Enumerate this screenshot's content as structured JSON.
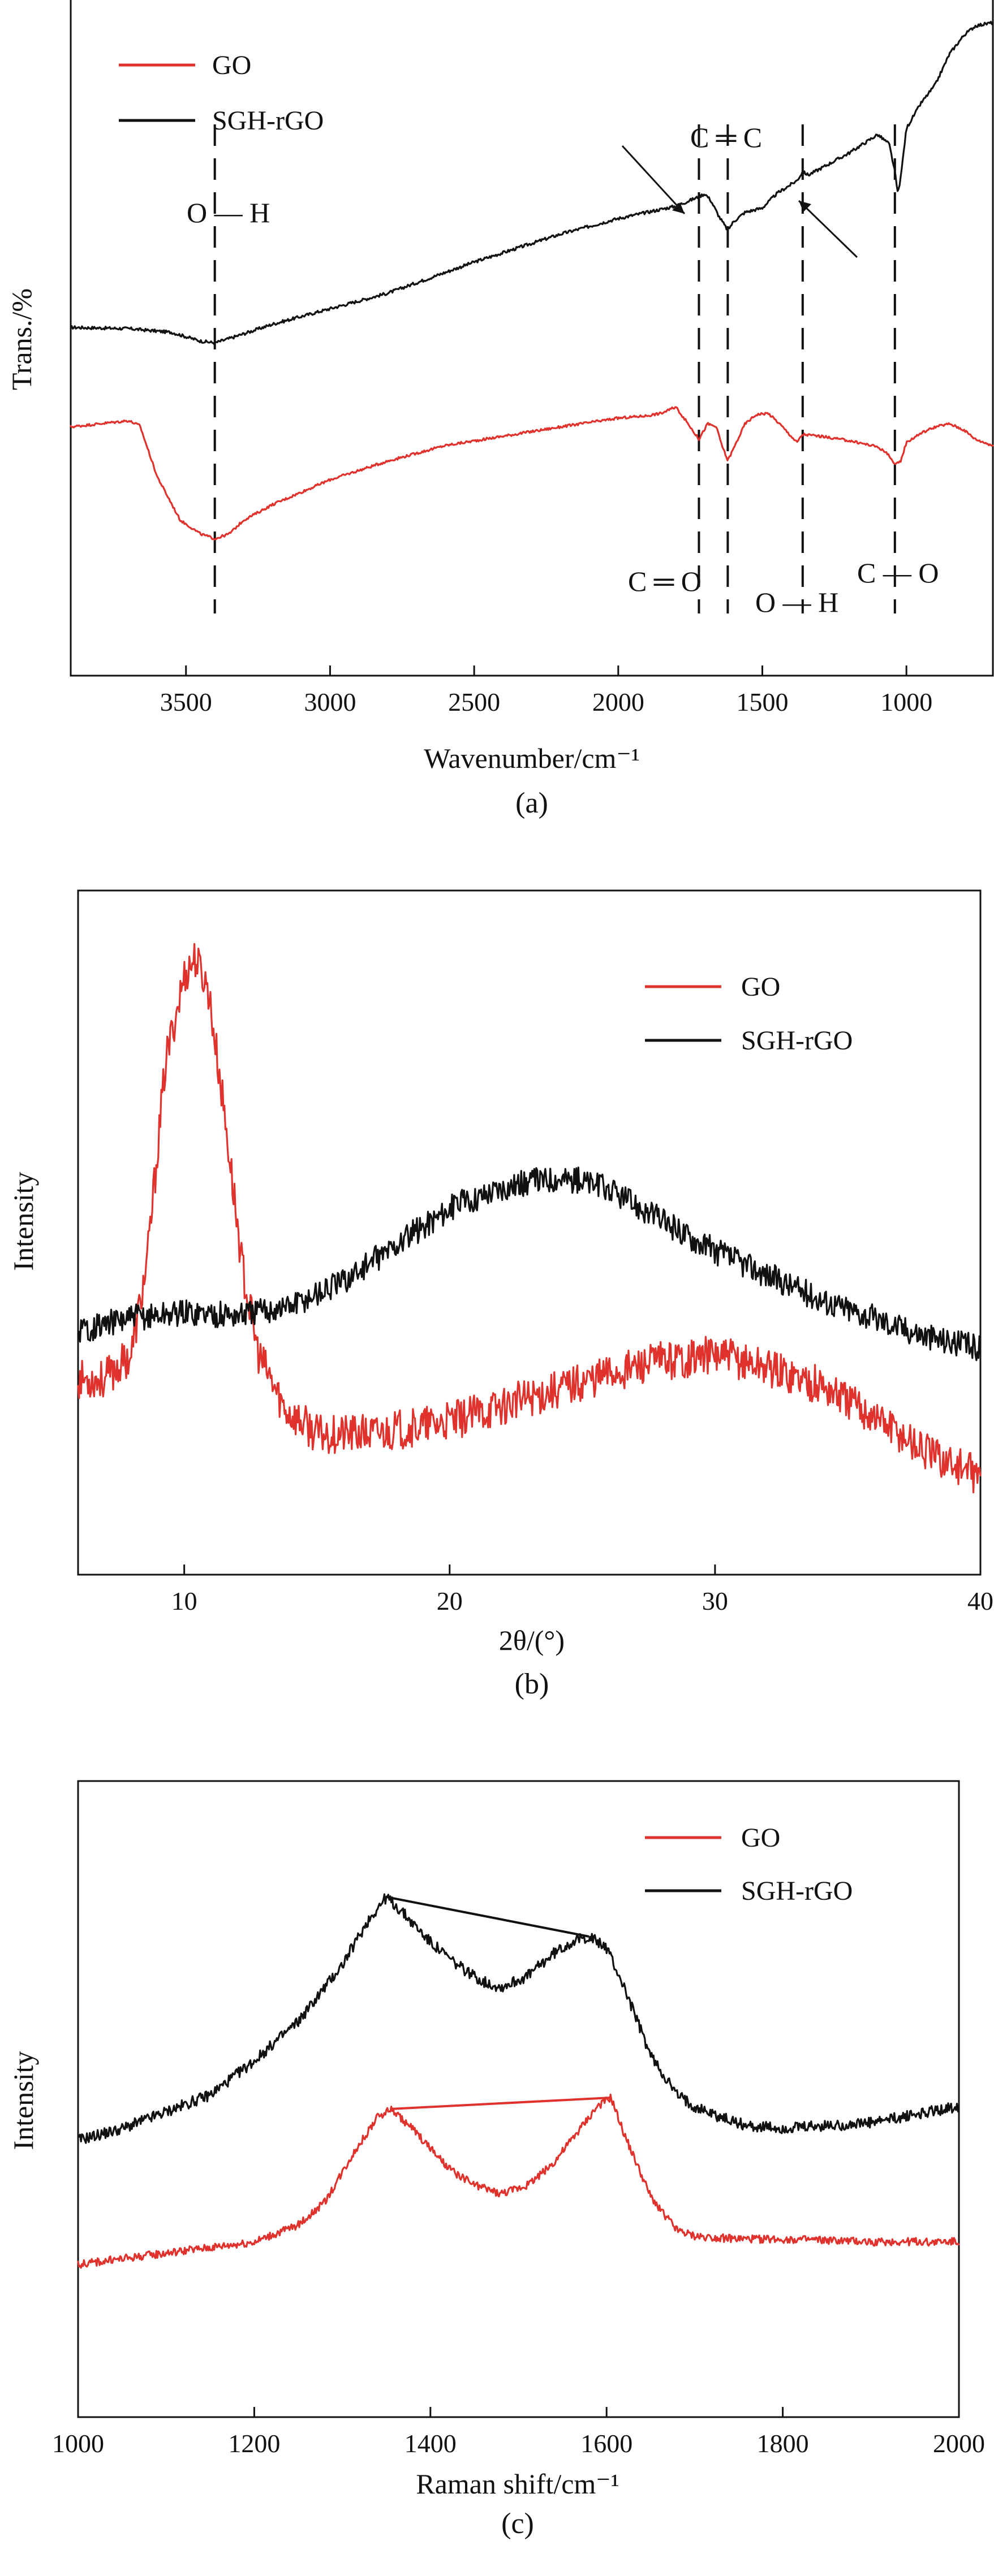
{
  "colors": {
    "go": "#e0322d",
    "sgh": "#111111"
  },
  "chart_data": [
    {
      "id": "a",
      "type": "line",
      "panel_label": "(a)",
      "xlabel": "Wavenumber/cm⁻¹",
      "ylabel": "Trans./%",
      "xlim": [
        3900,
        700
      ],
      "ylim": [
        0,
        100
      ],
      "x_ticks": [
        3500,
        3000,
        2500,
        2000,
        1500,
        1000
      ],
      "legend": [
        "GO",
        "SGH-rGO"
      ],
      "legend_position": "top-left",
      "series": [
        {
          "name": "SGH-rGO",
          "color_key": "sgh",
          "noise": 0.25,
          "points": [
            [
              3900,
              51
            ],
            [
              3700,
              50.8
            ],
            [
              3550,
              50.2
            ],
            [
              3450,
              48.8
            ],
            [
              3400,
              48.5
            ],
            [
              3350,
              49.2
            ],
            [
              3200,
              51.5
            ],
            [
              3000,
              54
            ],
            [
              2800,
              56.5
            ],
            [
              2500,
              61.5
            ],
            [
              2200,
              66
            ],
            [
              2000,
              68.5
            ],
            [
              1800,
              70.5
            ],
            [
              1720,
              72
            ],
            [
              1700,
              72.5
            ],
            [
              1680,
              71.5
            ],
            [
              1650,
              68.8
            ],
            [
              1620,
              66.6
            ],
            [
              1600,
              68
            ],
            [
              1560,
              69.5
            ],
            [
              1500,
              70.2
            ],
            [
              1450,
              72.5
            ],
            [
              1400,
              74
            ],
            [
              1380,
              74.6
            ],
            [
              1360,
              76
            ],
            [
              1340,
              75.5
            ],
            [
              1300,
              76.5
            ],
            [
              1200,
              79
            ],
            [
              1100,
              82
            ],
            [
              1060,
              80.5
            ],
            [
              1040,
              76
            ],
            [
              1030,
              72.5
            ],
            [
              1020,
              75
            ],
            [
              1000,
              83
            ],
            [
              950,
              87
            ],
            [
              900,
              90
            ],
            [
              850,
              95
            ],
            [
              800,
              98
            ],
            [
              760,
              99.5
            ],
            [
              700,
              100
            ]
          ]
        },
        {
          "name": "GO",
          "color_key": "go",
          "noise": 0.2,
          "points": [
            [
              3900,
              35
            ],
            [
              3800,
              35.5
            ],
            [
              3700,
              36
            ],
            [
              3660,
              35.2
            ],
            [
              3600,
              27
            ],
            [
              3520,
              20
            ],
            [
              3450,
              17.8
            ],
            [
              3400,
              17
            ],
            [
              3350,
              17.8
            ],
            [
              3300,
              20
            ],
            [
              3200,
              22.5
            ],
            [
              3000,
              26.5
            ],
            [
              2800,
              29.5
            ],
            [
              2600,
              32
            ],
            [
              2400,
              33.5
            ],
            [
              2200,
              35
            ],
            [
              2000,
              36.4
            ],
            [
              1900,
              36.8
            ],
            [
              1850,
              37.2
            ],
            [
              1800,
              38.2
            ],
            [
              1750,
              35
            ],
            [
              1720,
              33
            ],
            [
              1690,
              35.5
            ],
            [
              1660,
              35
            ],
            [
              1640,
              32
            ],
            [
              1620,
              29.6
            ],
            [
              1600,
              31.5
            ],
            [
              1560,
              35.5
            ],
            [
              1520,
              37
            ],
            [
              1480,
              37.2
            ],
            [
              1440,
              35.5
            ],
            [
              1400,
              33.5
            ],
            [
              1380,
              32.5
            ],
            [
              1360,
              33.8
            ],
            [
              1300,
              33.5
            ],
            [
              1200,
              32.8
            ],
            [
              1100,
              31.8
            ],
            [
              1060,
              30.5
            ],
            [
              1040,
              28.8
            ],
            [
              1020,
              29.5
            ],
            [
              1000,
              32.5
            ],
            [
              950,
              34
            ],
            [
              900,
              35
            ],
            [
              850,
              35.5
            ],
            [
              800,
              34.5
            ],
            [
              760,
              33
            ],
            [
              700,
              32
            ]
          ]
        }
      ],
      "guide_lines_cm": [
        3400,
        1720,
        1620,
        1360,
        1040
      ],
      "annotations": [
        {
          "text": "O — H",
          "near_cm": 3400,
          "note": "top"
        },
        {
          "text": "C ═ C",
          "near_cm": 1620,
          "note": "top"
        },
        {
          "text": "C ═ O",
          "near_cm": 1720,
          "note": "bottom"
        },
        {
          "text": "O — H",
          "near_cm": 1360,
          "note": "bottom"
        },
        {
          "text": "C — O",
          "near_cm": 1040,
          "note": "bottom"
        }
      ]
    },
    {
      "id": "b",
      "type": "line",
      "panel_label": "(b)",
      "xlabel": "2θ/(°)",
      "ylabel": "Intensity",
      "xlim": [
        6,
        40
      ],
      "ylim": [
        0,
        100
      ],
      "x_ticks": [
        10,
        20,
        30,
        40
      ],
      "legend": [
        "GO",
        "SGH-rGO"
      ],
      "legend_position": "top-right",
      "series": [
        {
          "name": "GO",
          "color_key": "go",
          "noise": 3.2,
          "points": [
            [
              6,
              26
            ],
            [
              7,
              26
            ],
            [
              8,
              30
            ],
            [
              8.6,
              45
            ],
            [
              9.3,
              78
            ],
            [
              10,
              92
            ],
            [
              10.4,
              95
            ],
            [
              10.9,
              90
            ],
            [
              11.5,
              70
            ],
            [
              12.2,
              44
            ],
            [
              12.8,
              30
            ],
            [
              13.8,
              21
            ],
            [
              15,
              17
            ],
            [
              17,
              17
            ],
            [
              20,
              19
            ],
            [
              23,
              23
            ],
            [
              26,
              27
            ],
            [
              28,
              29
            ],
            [
              30,
              30
            ],
            [
              32,
              28
            ],
            [
              34,
              25
            ],
            [
              36,
              20
            ],
            [
              38,
              14
            ],
            [
              40,
              10
            ]
          ]
        },
        {
          "name": "SGH-rGO",
          "color_key": "sgh",
          "noise": 2.2,
          "points": [
            [
              6,
              34
            ],
            [
              8,
              36
            ],
            [
              10,
              37
            ],
            [
              12,
              36.5
            ],
            [
              14,
              38
            ],
            [
              16,
              42
            ],
            [
              18,
              48
            ],
            [
              20,
              54
            ],
            [
              22,
              57.5
            ],
            [
              24,
              59
            ],
            [
              25,
              58.5
            ],
            [
              26,
              57
            ],
            [
              28,
              52
            ],
            [
              30,
              47
            ],
            [
              32,
              43
            ],
            [
              34,
              39
            ],
            [
              36,
              36
            ],
            [
              38,
              33
            ],
            [
              40,
              31
            ]
          ]
        }
      ]
    },
    {
      "id": "c",
      "type": "line",
      "panel_label": "(c)",
      "xlabel": "Raman shift/cm⁻¹",
      "ylabel": "Intensity",
      "xlim": [
        1000,
        2000
      ],
      "ylim": [
        0,
        100
      ],
      "x_ticks": [
        1000,
        1200,
        1400,
        1600,
        1800,
        2000
      ],
      "legend": [
        "GO",
        "SGH-rGO"
      ],
      "legend_position": "top-right",
      "series": [
        {
          "name": "SGH-rGO",
          "color_key": "sgh",
          "noise": 1.0,
          "points": [
            [
              1000,
              43
            ],
            [
              1050,
              45
            ],
            [
              1100,
              48
            ],
            [
              1150,
              51
            ],
            [
              1200,
              57
            ],
            [
              1250,
              64
            ],
            [
              1300,
              74
            ],
            [
              1330,
              82
            ],
            [
              1350,
              86
            ],
            [
              1370,
              83
            ],
            [
              1400,
              78
            ],
            [
              1430,
              74
            ],
            [
              1460,
              71
            ],
            [
              1480,
              70
            ],
            [
              1510,
              72
            ],
            [
              1540,
              76
            ],
            [
              1560,
              78
            ],
            [
              1580,
              79
            ],
            [
              1600,
              77
            ],
            [
              1620,
              70
            ],
            [
              1650,
              58
            ],
            [
              1680,
              51
            ],
            [
              1700,
              49
            ],
            [
              1730,
              47
            ],
            [
              1760,
              45.5
            ],
            [
              1800,
              45
            ],
            [
              1850,
              45.5
            ],
            [
              1900,
              46
            ],
            [
              1950,
              47.5
            ],
            [
              2000,
              49
            ]
          ]
        },
        {
          "name": "GO",
          "color_key": "go",
          "noise": 0.7,
          "points": [
            [
              1000,
              21
            ],
            [
              1050,
              22
            ],
            [
              1100,
              23
            ],
            [
              1150,
              24
            ],
            [
              1200,
              25
            ],
            [
              1250,
              28
            ],
            [
              1280,
              32
            ],
            [
              1310,
              40
            ],
            [
              1340,
              47
            ],
            [
              1355,
              48.5
            ],
            [
              1380,
              45
            ],
            [
              1420,
              38
            ],
            [
              1450,
              35
            ],
            [
              1480,
              33.5
            ],
            [
              1510,
              35
            ],
            [
              1540,
              39
            ],
            [
              1570,
              45
            ],
            [
              1590,
              49
            ],
            [
              1605,
              50.5
            ],
            [
              1620,
              44
            ],
            [
              1650,
              33
            ],
            [
              1680,
              27
            ],
            [
              1700,
              26
            ],
            [
              1750,
              25.5
            ],
            [
              1800,
              25.5
            ],
            [
              1900,
              25
            ],
            [
              2000,
              25
            ]
          ]
        }
      ],
      "peak_connectors": [
        {
          "color_key": "sgh",
          "from": [
            1350,
            86
          ],
          "to": [
            1580,
            79
          ]
        },
        {
          "color_key": "go",
          "from": [
            1355,
            48.5
          ],
          "to": [
            1605,
            50.5
          ]
        }
      ]
    }
  ]
}
